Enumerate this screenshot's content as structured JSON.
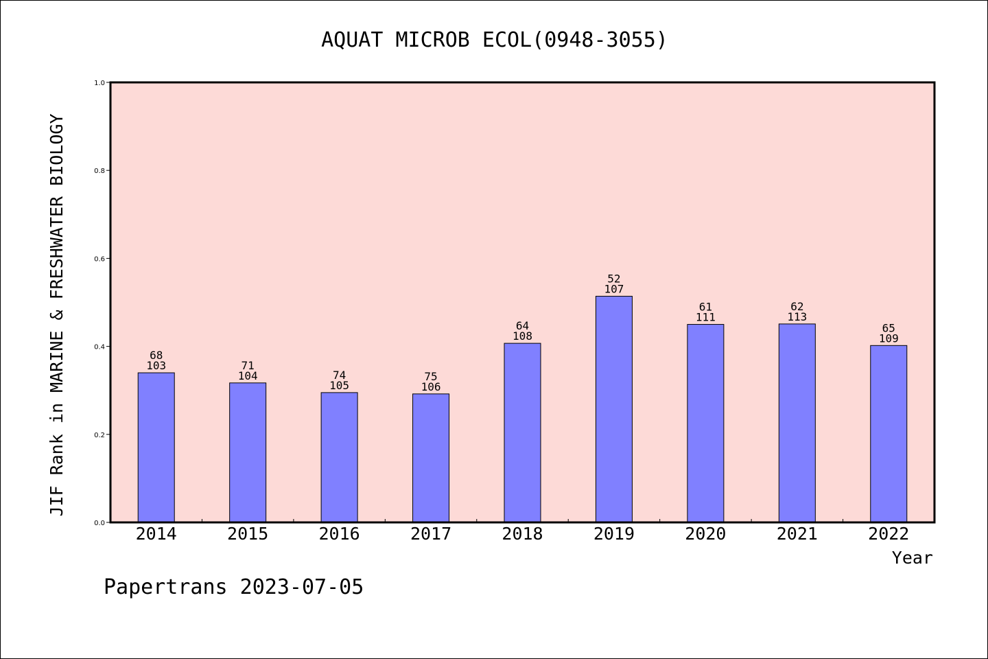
{
  "chart_data": {
    "type": "bar",
    "title": "AQUAT MICROB ECOL(0948-3055)",
    "xlabel": "Year",
    "ylabel": "JIF Rank in MARINE & FRESHWATER BIOLOGY",
    "categories": [
      "2014",
      "2015",
      "2016",
      "2017",
      "2018",
      "2019",
      "2020",
      "2021",
      "2022"
    ],
    "values": [
      0.34,
      0.317,
      0.295,
      0.292,
      0.407,
      0.514,
      0.45,
      0.451,
      0.402
    ],
    "labels_top": [
      "68",
      "71",
      "74",
      "75",
      "64",
      "52",
      "61",
      "62",
      "65"
    ],
    "labels_bottom": [
      "103",
      "104",
      "105",
      "106",
      "108",
      "107",
      "111",
      "113",
      "109"
    ],
    "ylim": [
      0,
      1.0
    ],
    "yticks": [
      "0.0",
      "0.2",
      "0.4",
      "0.6",
      "0.8",
      "1.0"
    ],
    "grid": false,
    "legend": "none",
    "colors": {
      "plot_background": "#fddad7",
      "bar_fill": "#8080ff",
      "bar_stroke": "#000000"
    }
  },
  "footer": "Papertrans 2023-07-05"
}
